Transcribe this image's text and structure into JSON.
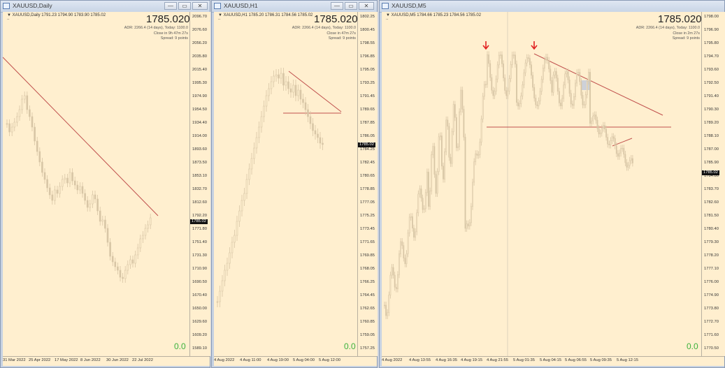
{
  "windows": [
    {
      "title": "XAUUSD,Daily",
      "info": "XAUUSD,Daily  1791.23 1794.90 1783.90 1785.02",
      "big_price": "1785.0200",
      "stats": [
        "ADR: 2266.4 (14 days), Today: 1100.0",
        "Close in 9h 47m 27s",
        "Spread: 9 points"
      ],
      "value": "0.0",
      "price_scale": [
        "2096.70",
        "2076.60",
        "2056.20",
        "2035.80",
        "2015.40",
        "1995.30",
        "1974.90",
        "1954.50",
        "1934.40",
        "1914.00",
        "1893.60",
        "1873.50",
        "1853.10",
        "1832.70",
        "1812.60",
        "1792.20",
        "1771.80",
        "1751.40",
        "1731.30",
        "1710.90",
        "1690.50",
        "1670.40",
        "1650.00",
        "1629.60",
        "1609.20",
        "1589.10"
      ],
      "current_tag": "1785.02",
      "time_axis": [
        "31 Mar 2022",
        "25 Apr 2022",
        "17 May 2022",
        "8 Jun 2022",
        "30 Jun 2022",
        "22 Jul 2022"
      ]
    },
    {
      "title": "XAUUSD,H1",
      "info": "XAUUSD,H1  1785.20 1786.31 1784.56 1785.02",
      "big_price": "1785.0200",
      "stats": [
        "ADR: 2266.4 (14 days), Today: 1100.0",
        "Close in 47m 27s",
        "Spread: 9 points"
      ],
      "value": "0.0",
      "price_scale": [
        "1802.25",
        "1800.45",
        "1798.55",
        "1796.85",
        "1795.05",
        "1793.25",
        "1791.45",
        "1789.65",
        "1787.85",
        "1786.05",
        "1784.25",
        "1782.45",
        "1780.65",
        "1778.85",
        "1777.05",
        "1775.25",
        "1773.45",
        "1771.65",
        "1769.85",
        "1768.05",
        "1766.25",
        "1764.45",
        "1762.65",
        "1760.85",
        "1759.05",
        "1757.25"
      ],
      "current_tag": "1785.02",
      "time_axis": [
        "4 Aug 2022",
        "4 Aug 11:00",
        "4 Aug 19:00",
        "5 Aug 04:00",
        "5 Aug 12:00"
      ]
    },
    {
      "title": "XAUUSD,M5",
      "info": "XAUUSD,M5  1784.66 1785.23 1784.56 1785.02",
      "big_price": "1785.0200",
      "stats": [
        "ADR: 2266.4 (14 days), Today: 1100.0",
        "Close in 2m 27s",
        "Spread: 9 points"
      ],
      "value": "0.0",
      "price_scale": [
        "1798.00",
        "1796.90",
        "1795.80",
        "1794.70",
        "1793.60",
        "1792.50",
        "1791.40",
        "1790.30",
        "1789.20",
        "1788.10",
        "1787.00",
        "1785.90",
        "1784.80",
        "1783.70",
        "1782.60",
        "1781.50",
        "1780.40",
        "1779.30",
        "1778.20",
        "1777.10",
        "1776.00",
        "1774.90",
        "1773.80",
        "1772.70",
        "1771.60",
        "1770.50"
      ],
      "current_tag": "1785.02",
      "time_axis": [
        "4 Aug 2022",
        "4 Aug 13:55",
        "4 Aug 16:35",
        "4 Aug 19:15",
        "4 Aug 21:55",
        "5 Aug 01:35",
        "5 Aug 04:15",
        "5 Aug 06:55",
        "5 Aug 09:35",
        "5 Aug 12:15"
      ]
    }
  ],
  "window_buttons": {
    "minimize": "—",
    "maximize": "▭",
    "close": "✕"
  },
  "colors": {
    "chart_bg": "#ffefcf",
    "trendline": "#c0504d",
    "candles": "#d8c6a6",
    "accent_green": "#3cb23c",
    "arrow": "#e02020"
  }
}
